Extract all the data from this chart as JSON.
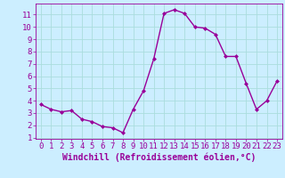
{
  "x": [
    0,
    1,
    2,
    3,
    4,
    5,
    6,
    7,
    8,
    9,
    10,
    11,
    12,
    13,
    14,
    15,
    16,
    17,
    18,
    19,
    20,
    21,
    22,
    23
  ],
  "y": [
    3.7,
    3.3,
    3.1,
    3.2,
    2.5,
    2.3,
    1.9,
    1.8,
    1.4,
    3.3,
    4.8,
    7.4,
    11.1,
    11.4,
    11.1,
    10.0,
    9.9,
    9.4,
    7.6,
    7.6,
    5.4,
    3.3,
    4.0,
    5.6
  ],
  "line_color": "#990099",
  "marker": "D",
  "marker_size": 2.0,
  "bg_color": "#cceeff",
  "grid_color": "#aadddd",
  "xlabel": "Windchill (Refroidissement éolien,°C)",
  "xlabel_color": "#990099",
  "tick_color": "#990099",
  "xlim": [
    -0.5,
    23.5
  ],
  "ylim": [
    0.9,
    11.9
  ],
  "yticks": [
    1,
    2,
    3,
    4,
    5,
    6,
    7,
    8,
    9,
    10,
    11
  ],
  "xticks": [
    0,
    1,
    2,
    3,
    4,
    5,
    6,
    7,
    8,
    9,
    10,
    11,
    12,
    13,
    14,
    15,
    16,
    17,
    18,
    19,
    20,
    21,
    22,
    23
  ],
  "line_width": 1.0,
  "tick_fontsize": 6.5,
  "xlabel_fontsize": 7.0
}
